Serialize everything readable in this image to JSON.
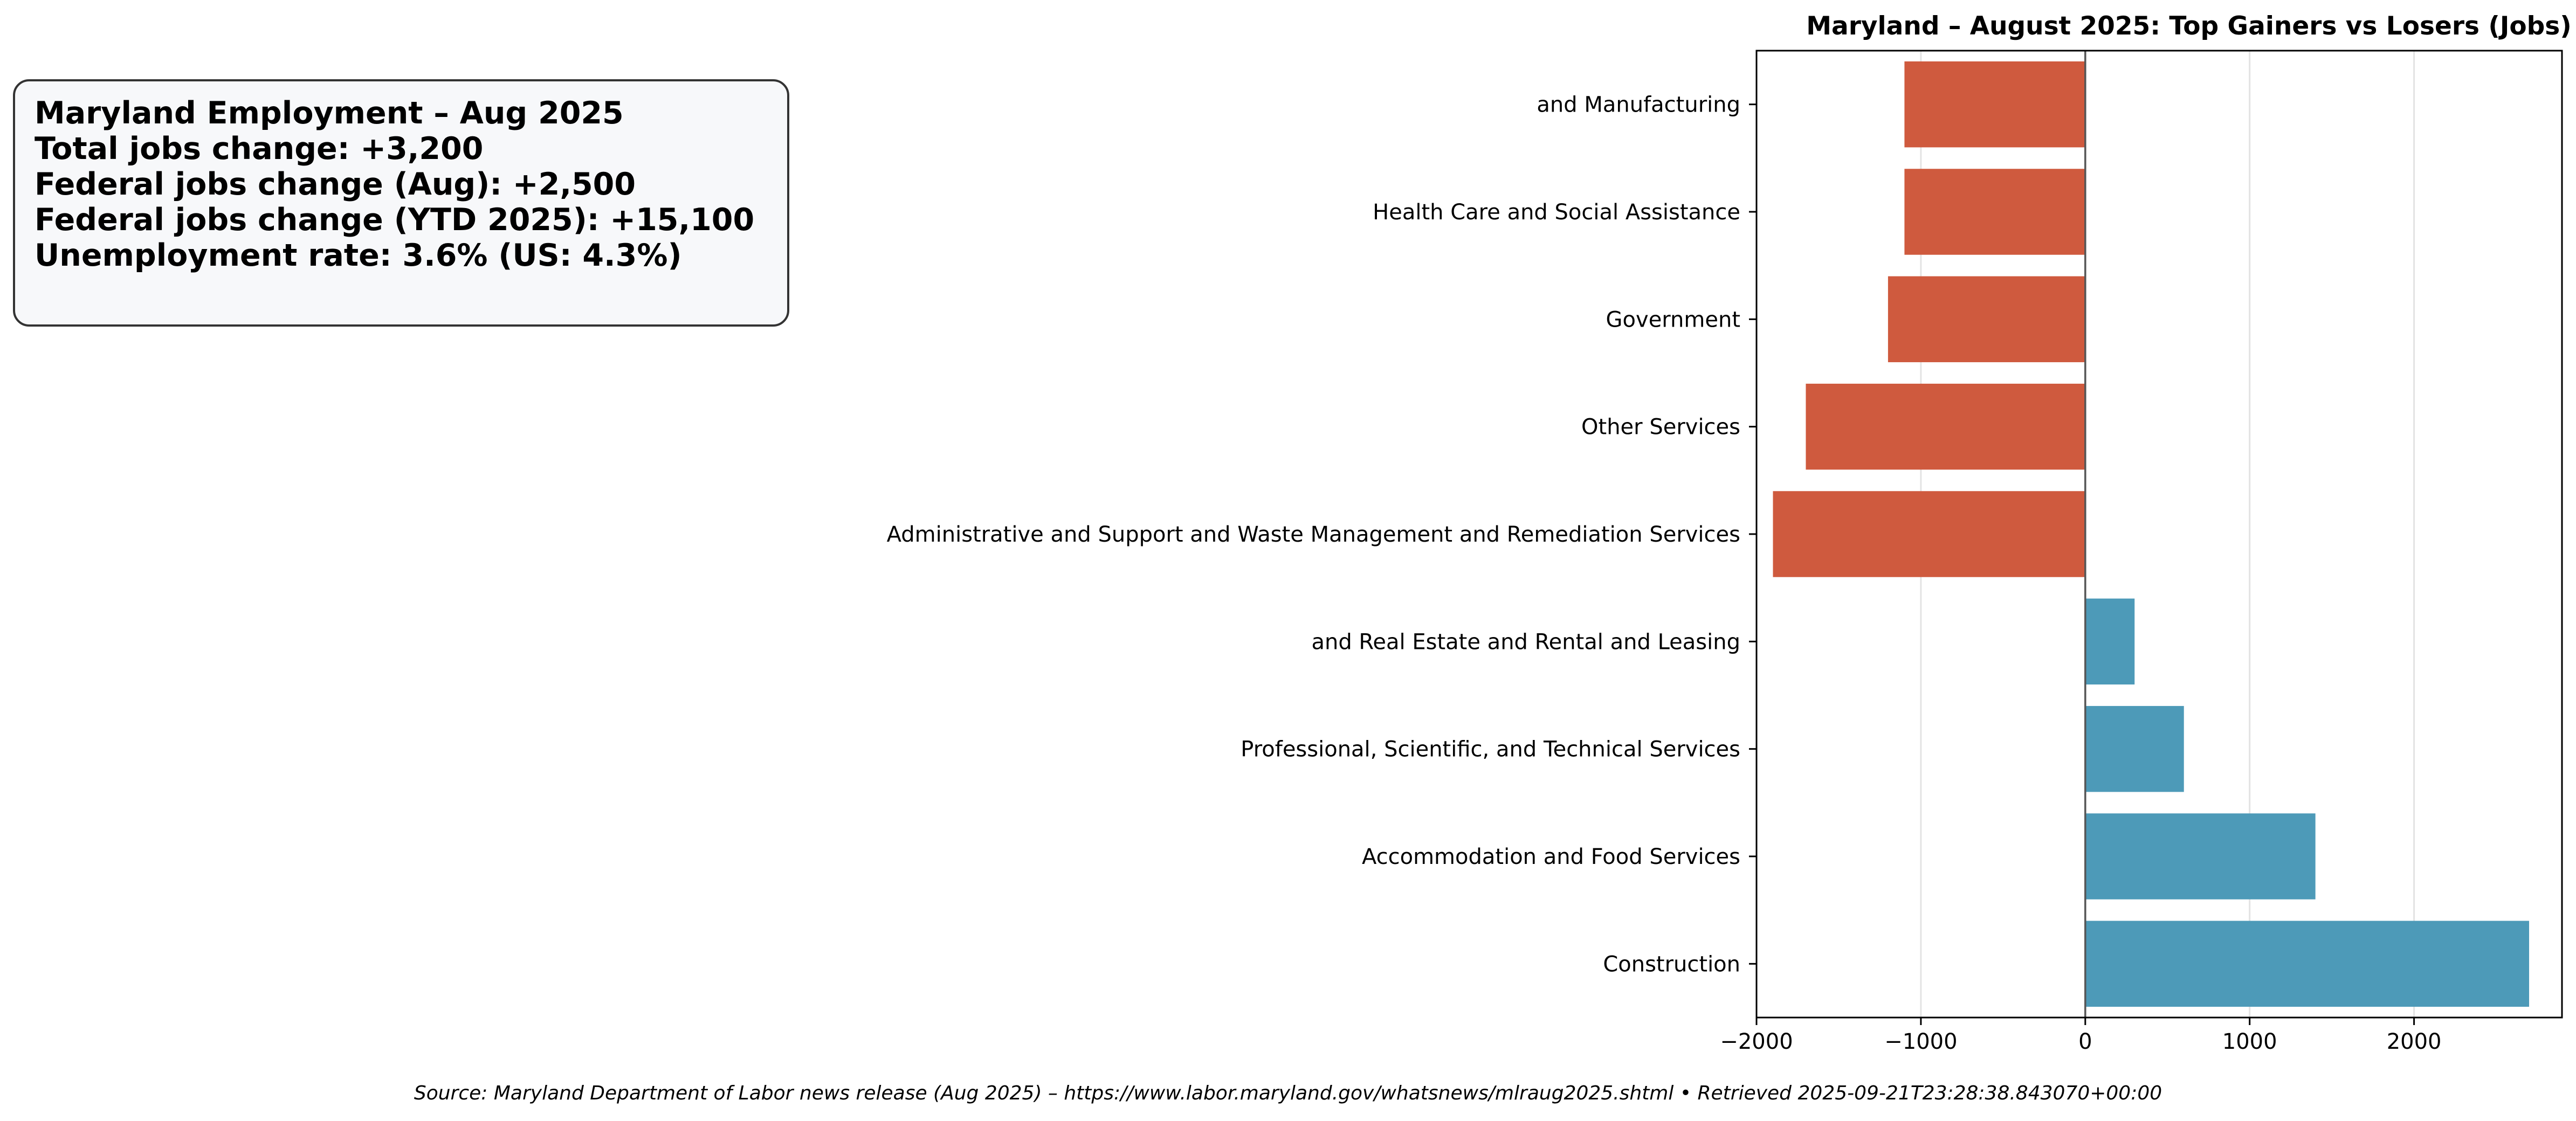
{
  "info_box": {
    "lines": [
      "Maryland Employment – Aug 2025",
      "Total jobs change: +3,200",
      "Federal jobs change (Aug): +2,500",
      "Federal jobs change (YTD 2025): +15,100",
      "Unemployment rate: 3.6% (US: 4.3%)"
    ]
  },
  "source_note": "Source: Maryland Department of Labor news release (Aug 2025) – https://www.labor.maryland.gov/whatsnews/mlraug2025.shtml • Retrieved 2025-09-21T23:28:38.843070+00:00",
  "colors": {
    "gainer": "#4d9ab8",
    "loser": "#cf5a3e",
    "zero_line": "#555555",
    "grid": "#e3e3e3",
    "axes": "#000000"
  },
  "chart_data": {
    "type": "bar",
    "orientation": "horizontal",
    "title": "Maryland – August 2025: Top Gainers vs Losers (Jobs)",
    "xlabel": "",
    "ylabel": "",
    "xlim": [
      -2000,
      2900
    ],
    "xticks": [
      -2000,
      -1000,
      0,
      1000,
      2000
    ],
    "xtick_labels": [
      "−2000",
      "−1000",
      "0",
      "1000",
      "2000"
    ],
    "grid": "vertical",
    "categories": [
      "and Manufacturing",
      "Health Care and Social Assistance",
      "Government",
      "Other Services",
      "Administrative and Support and Waste Management and Remediation Services",
      "and Real Estate and Rental and Leasing",
      "Professional, Scientific, and Technical Services",
      "Accommodation and Food Services",
      "Construction"
    ],
    "values": [
      -1100,
      -1100,
      -1200,
      -1700,
      -1900,
      300,
      600,
      1400,
      2700
    ]
  }
}
